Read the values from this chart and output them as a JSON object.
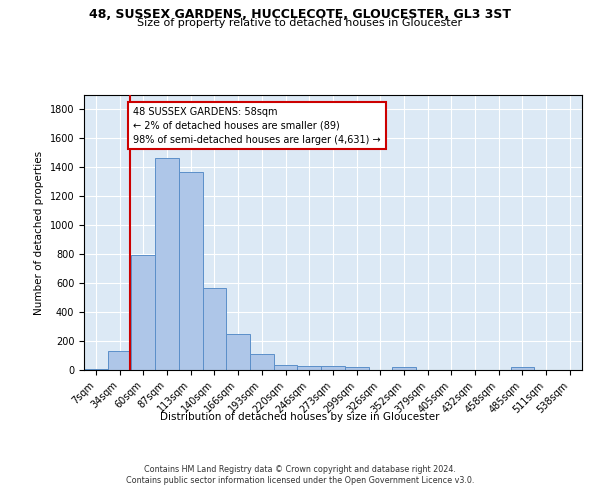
{
  "title": "48, SUSSEX GARDENS, HUCCLECOTE, GLOUCESTER, GL3 3ST",
  "subtitle": "Size of property relative to detached houses in Gloucester",
  "xlabel": "Distribution of detached houses by size in Gloucester",
  "ylabel": "Number of detached properties",
  "bin_labels": [
    "7sqm",
    "34sqm",
    "60sqm",
    "87sqm",
    "113sqm",
    "140sqm",
    "166sqm",
    "193sqm",
    "220sqm",
    "246sqm",
    "273sqm",
    "299sqm",
    "326sqm",
    "352sqm",
    "379sqm",
    "405sqm",
    "432sqm",
    "458sqm",
    "485sqm",
    "511sqm",
    "538sqm"
  ],
  "bar_heights": [
    10,
    130,
    795,
    1465,
    1365,
    565,
    250,
    108,
    37,
    30,
    30,
    20,
    0,
    20,
    0,
    0,
    0,
    0,
    20,
    0,
    0
  ],
  "bar_color": "#aec6e8",
  "bar_edge_color": "#5b8fc9",
  "red_line_x": 58,
  "bin_edges": [
    7,
    34,
    60,
    87,
    113,
    140,
    166,
    193,
    220,
    246,
    273,
    299,
    326,
    352,
    379,
    405,
    432,
    458,
    485,
    511,
    538,
    565
  ],
  "annotation_text": "48 SUSSEX GARDENS: 58sqm\n← 2% of detached houses are smaller (89)\n98% of semi-detached houses are larger (4,631) →",
  "annotation_box_color": "#ffffff",
  "annotation_box_edge_color": "#cc0000",
  "ylim": [
    0,
    1900
  ],
  "yticks": [
    0,
    200,
    400,
    600,
    800,
    1000,
    1200,
    1400,
    1600,
    1800
  ],
  "bg_color": "#dce9f5",
  "grid_color": "#ffffff",
  "footer_line1": "Contains HM Land Registry data © Crown copyright and database right 2024.",
  "footer_line2": "Contains public sector information licensed under the Open Government Licence v3.0."
}
